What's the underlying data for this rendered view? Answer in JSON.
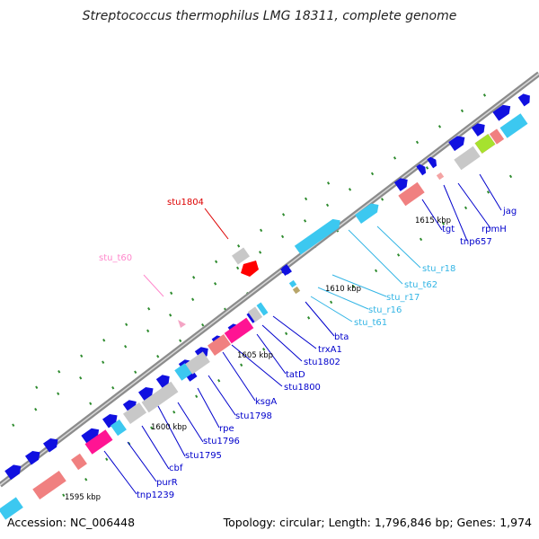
{
  "title": "Streptococcus thermophilus LMG 18311, complete genome",
  "footer": {
    "accession": "Accession: NC_006448",
    "summary": "Topology: circular; Length: 1,796,846 bp; Genes: 1,974"
  },
  "colors": {
    "backbone": "#8c8c8c",
    "protein": "#1010e0",
    "rrna": "#3cc8f0",
    "trna": "#f08080",
    "pseudo": "#c8c8c8",
    "misc": "#ff1493",
    "label_default": "#0000cc",
    "label_rrna": "#33b5e5",
    "label_trna": "#ff88cc",
    "label_pseudo": "#dd0000"
  },
  "scale_labels": [
    "1595 kbp",
    "1600 kbp",
    "1605 kbp",
    "1610 kbp",
    "1615 kbp"
  ],
  "gene_labels": [
    {
      "text": "jag",
      "type": "protein"
    },
    {
      "text": "rpmH",
      "type": "protein"
    },
    {
      "text": "tnp657",
      "type": "protein"
    },
    {
      "text": "tgt",
      "type": "protein"
    },
    {
      "text": "stu_r18",
      "type": "rrna"
    },
    {
      "text": "stu_t62",
      "type": "rrna"
    },
    {
      "text": "stu_r17",
      "type": "rrna"
    },
    {
      "text": "stu_r16",
      "type": "rrna"
    },
    {
      "text": "stu_t61",
      "type": "rrna"
    },
    {
      "text": "bta",
      "type": "protein"
    },
    {
      "text": "trxA1",
      "type": "protein"
    },
    {
      "text": "stu1802",
      "type": "protein"
    },
    {
      "text": "tatD",
      "type": "protein"
    },
    {
      "text": "stu1800",
      "type": "protein"
    },
    {
      "text": "ksgA",
      "type": "protein"
    },
    {
      "text": "stu1798",
      "type": "protein"
    },
    {
      "text": "rpe",
      "type": "protein"
    },
    {
      "text": "stu1796",
      "type": "protein"
    },
    {
      "text": "stu1795",
      "type": "protein"
    },
    {
      "text": "cbf",
      "type": "protein"
    },
    {
      "text": "purR",
      "type": "protein"
    },
    {
      "text": "tnp1239",
      "type": "protein"
    },
    {
      "text": "stu1804",
      "type": "pseudo"
    },
    {
      "text": "stu_t60",
      "type": "trna"
    }
  ]
}
